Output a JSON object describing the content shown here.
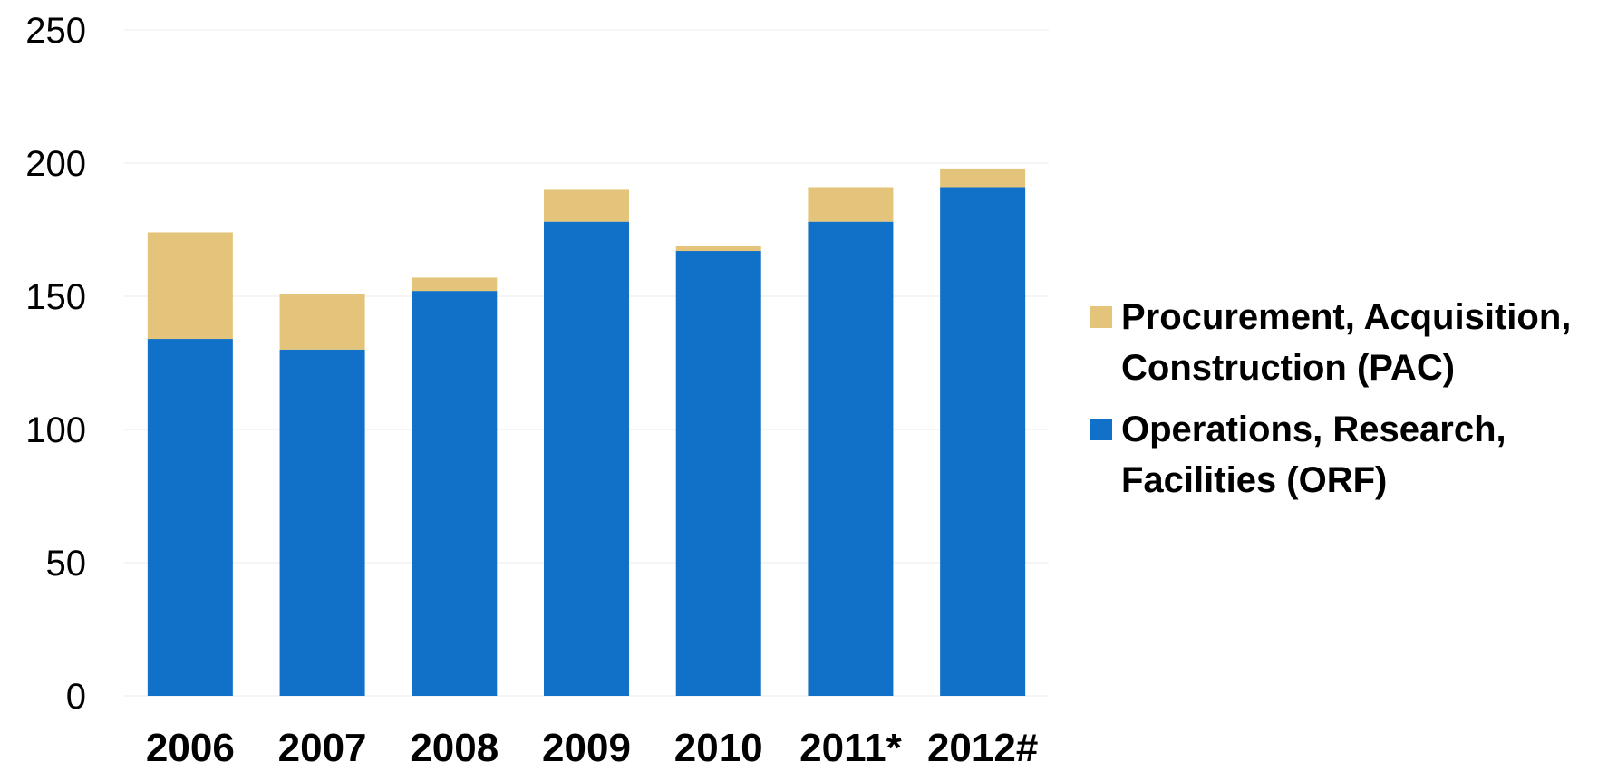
{
  "chart_data": {
    "type": "bar",
    "stacked": true,
    "categories": [
      "2006",
      "2007",
      "2008",
      "2009",
      "2010",
      "2011*",
      "2012#"
    ],
    "series": [
      {
        "name": "Operations, Research, Facilities (ORF)",
        "name_lines": [
          "Operations, Research,",
          "Facilities (ORF)"
        ],
        "color": "#1170C7",
        "values": [
          134,
          130,
          152,
          178,
          167,
          178,
          191
        ]
      },
      {
        "name": "Procurement, Acquisition, Construction (PAC)",
        "name_lines": [
          "Procurement, Acquisition,",
          "Construction (PAC)"
        ],
        "color": "#E4C47A",
        "values": [
          40,
          21,
          5,
          12,
          2,
          13,
          7
        ]
      }
    ],
    "ylim": [
      0,
      250
    ],
    "yticks": [
      0,
      50,
      100,
      150,
      200,
      250
    ],
    "title": "",
    "xlabel": "",
    "ylabel": "",
    "grid": true,
    "gridline_color": "#F2F2F2",
    "legend_position": "right"
  }
}
